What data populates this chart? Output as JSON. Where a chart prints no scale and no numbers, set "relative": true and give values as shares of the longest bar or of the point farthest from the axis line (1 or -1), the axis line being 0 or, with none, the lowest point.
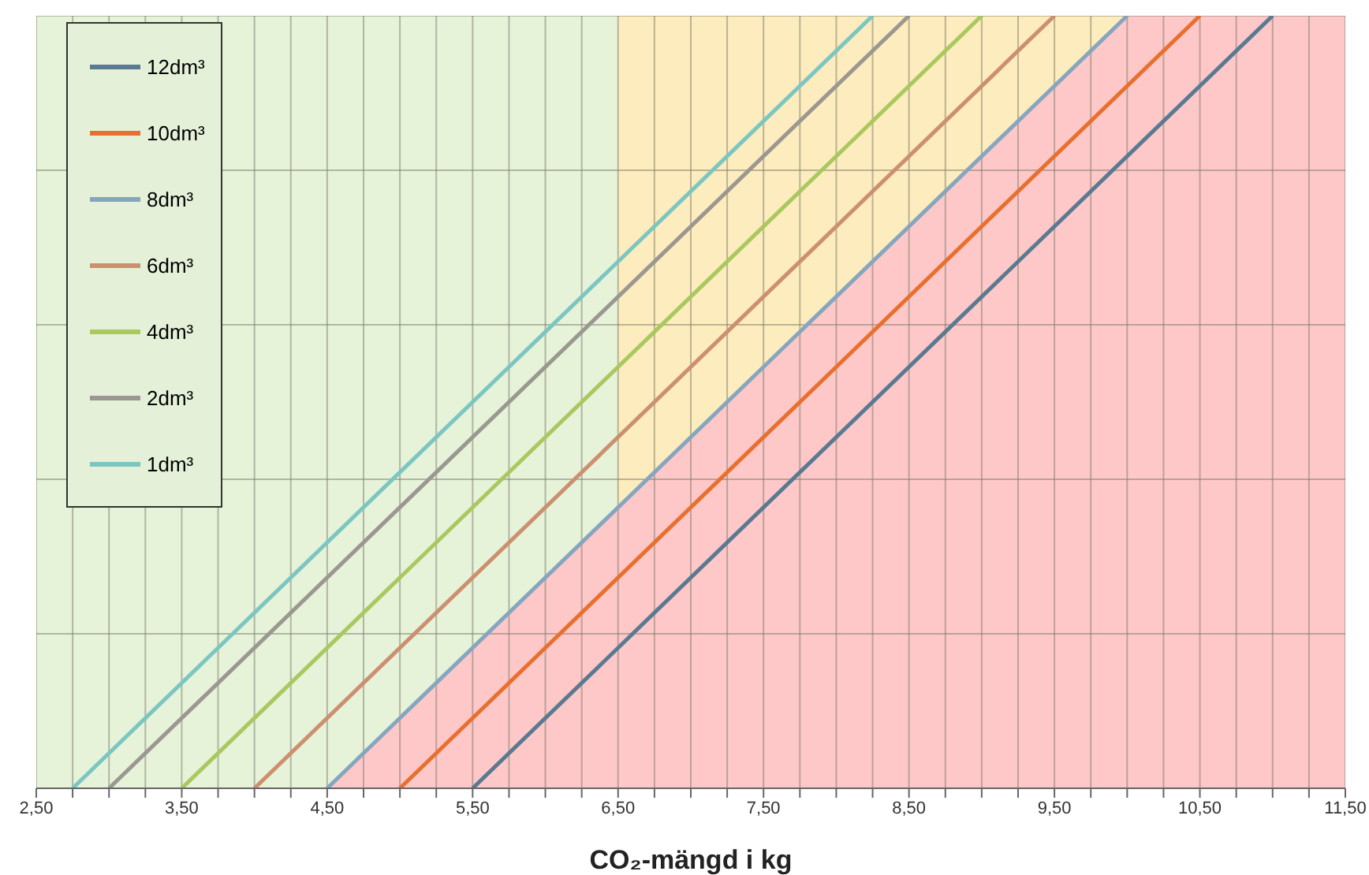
{
  "chart_data": {
    "type": "line",
    "xlabel": "CO₂-mängd i kg",
    "relative": true,
    "xlim": [
      2.5,
      11.5
    ],
    "xticks": [
      {
        "value": 2.5,
        "label": "2,50"
      },
      {
        "value": 2.75,
        "label": null
      },
      {
        "value": 3.0,
        "label": null
      },
      {
        "value": 3.25,
        "label": null
      },
      {
        "value": 3.5,
        "label": "3,50"
      },
      {
        "value": 3.75,
        "label": null
      },
      {
        "value": 4.0,
        "label": null
      },
      {
        "value": 4.25,
        "label": null
      },
      {
        "value": 4.5,
        "label": "4,50"
      },
      {
        "value": 4.75,
        "label": null
      },
      {
        "value": 5.0,
        "label": null
      },
      {
        "value": 5.25,
        "label": null
      },
      {
        "value": 5.5,
        "label": "5,50"
      },
      {
        "value": 5.75,
        "label": null
      },
      {
        "value": 6.0,
        "label": null
      },
      {
        "value": 6.25,
        "label": null
      },
      {
        "value": 6.5,
        "label": "6,50"
      },
      {
        "value": 6.75,
        "label": null
      },
      {
        "value": 7.0,
        "label": null
      },
      {
        "value": 7.25,
        "label": null
      },
      {
        "value": 7.5,
        "label": "7,50"
      },
      {
        "value": 7.75,
        "label": null
      },
      {
        "value": 8.0,
        "label": null
      },
      {
        "value": 8.25,
        "label": null
      },
      {
        "value": 8.5,
        "label": "8,50"
      },
      {
        "value": 8.75,
        "label": null
      },
      {
        "value": 9.0,
        "label": null
      },
      {
        "value": 9.25,
        "label": null
      },
      {
        "value": 9.5,
        "label": "9,50"
      },
      {
        "value": 9.75,
        "label": null
      },
      {
        "value": 10.0,
        "label": null
      },
      {
        "value": 10.25,
        "label": null
      },
      {
        "value": 10.5,
        "label": "10,50"
      },
      {
        "value": 10.75,
        "label": null
      },
      {
        "value": 11.0,
        "label": null
      },
      {
        "value": 11.25,
        "label": null
      },
      {
        "value": 11.5,
        "label": "11,50"
      }
    ],
    "bands": [
      {
        "axis": "x",
        "from": 2.5,
        "to": 6.5,
        "color": "#e6f3d9"
      },
      {
        "axis": "x",
        "from": 6.5,
        "to": 11.5,
        "color": "#fdecbd"
      }
    ],
    "series": [
      {
        "type": "area",
        "color": "#ffc8c8",
        "x": [
          4.5,
          10.0,
          11.5
        ],
        "values": [
          0,
          1,
          1
        ]
      },
      {
        "name": "12dm³",
        "color": "#5a7a92",
        "x": [
          5.5,
          11.0
        ],
        "values": [
          0,
          1
        ]
      },
      {
        "name": "10dm³",
        "color": "#e8702e",
        "x": [
          5.0,
          10.5
        ],
        "values": [
          0,
          1
        ]
      },
      {
        "name": "8dm³",
        "color": "#86a6c0",
        "x": [
          4.5,
          10.0
        ],
        "values": [
          0,
          1
        ]
      },
      {
        "name": "6dm³",
        "color": "#cc9070",
        "x": [
          4.0,
          9.5
        ],
        "values": [
          0,
          1
        ]
      },
      {
        "name": "4dm³",
        "color": "#a9c85e",
        "x": [
          3.5,
          9.0
        ],
        "values": [
          0,
          1
        ]
      },
      {
        "name": "2dm³",
        "color": "#9b9791",
        "x": [
          3.0,
          8.5
        ],
        "values": [
          0,
          1
        ]
      },
      {
        "name": "1dm³",
        "color": "#7cc6c2",
        "x": [
          2.75,
          8.25
        ],
        "values": [
          0,
          1
        ]
      }
    ],
    "grid": true,
    "legend": "top left",
    "marker": "none",
    "line_style": "solid"
  }
}
